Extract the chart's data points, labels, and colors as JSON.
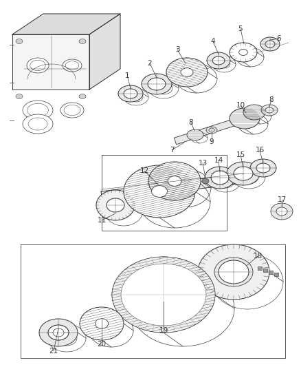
{
  "background_color": "#ffffff",
  "line_color": "#333333",
  "label_color": "#333333",
  "fig_width": 4.39,
  "fig_height": 5.33,
  "dpi": 100,
  "label_fontsize": 7.5,
  "lw": 0.7
}
